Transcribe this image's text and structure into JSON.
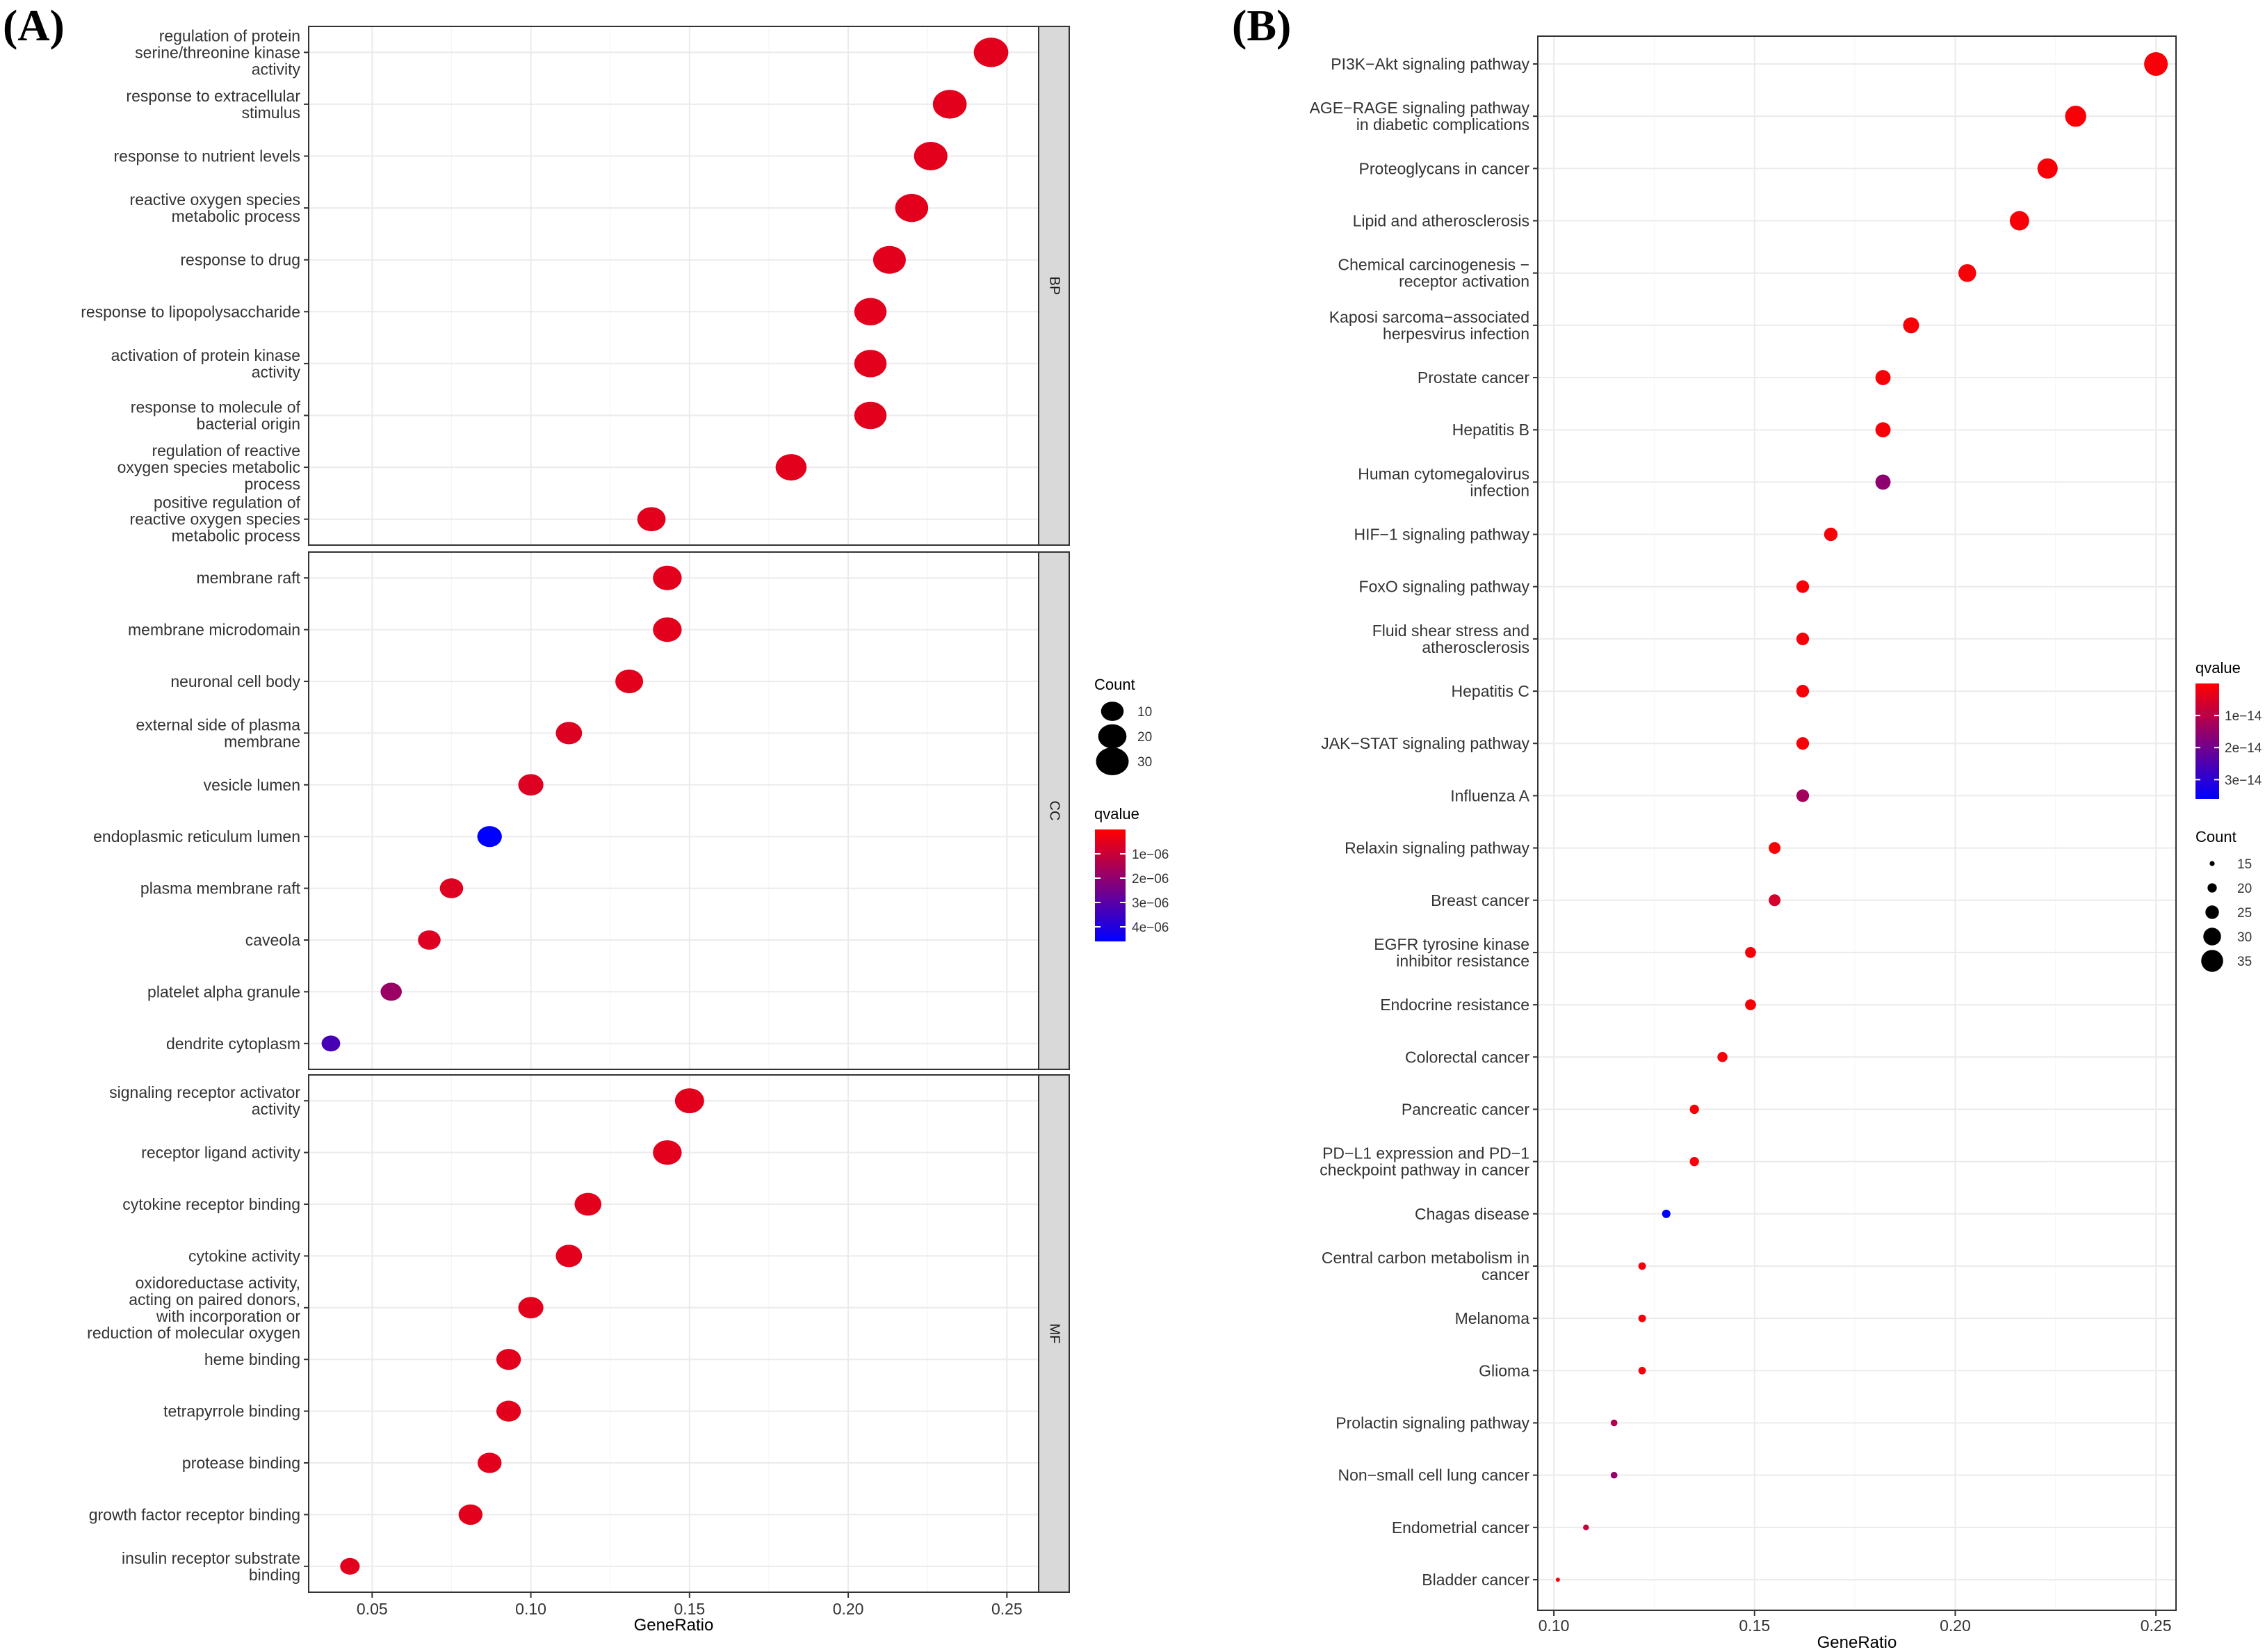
{
  "panel_labels": [
    "(A)",
    "(B)"
  ],
  "chart_data": [
    {
      "type": "scatter",
      "panel": "(A)",
      "xlabel": "GeneRatio",
      "ylabel": "",
      "xlim": [
        0.03,
        0.26
      ],
      "xticks": [
        0.05,
        0.1,
        0.15,
        0.2,
        0.25
      ],
      "xtick_labels": [
        "0.05",
        "0.10",
        "0.15",
        "0.20",
        "0.25"
      ],
      "facets": [
        {
          "label": "BP",
          "terms": [
            {
              "name": "regulation of protein\nserine/threonine kinase\nactivity",
              "gene_ratio": 0.245,
              "count": 35,
              "qvalue": 5e-07
            },
            {
              "name": "response to extracellular\nstimulus",
              "gene_ratio": 0.232,
              "count": 33,
              "qvalue": 5e-07
            },
            {
              "name": "response to nutrient levels",
              "gene_ratio": 0.226,
              "count": 32,
              "qvalue": 5e-07
            },
            {
              "name": "reactive oxygen species\nmetabolic process",
              "gene_ratio": 0.22,
              "count": 31,
              "qvalue": 5e-07
            },
            {
              "name": "response to drug",
              "gene_ratio": 0.213,
              "count": 30,
              "qvalue": 5e-07
            },
            {
              "name": "response to lipopolysaccharide",
              "gene_ratio": 0.207,
              "count": 29,
              "qvalue": 5e-07
            },
            {
              "name": "activation of protein kinase\nactivity",
              "gene_ratio": 0.207,
              "count": 29,
              "qvalue": 5e-07
            },
            {
              "name": "response to molecule of\nbacterial origin",
              "gene_ratio": 0.207,
              "count": 29,
              "qvalue": 5e-07
            },
            {
              "name": "regulation of reactive\noxygen species metabolic\nprocess",
              "gene_ratio": 0.182,
              "count": 26,
              "qvalue": 5e-07
            },
            {
              "name": "positive regulation of\nreactive oxygen species\nmetabolic process",
              "gene_ratio": 0.138,
              "count": 20,
              "qvalue": 5e-07
            }
          ]
        },
        {
          "label": "CC",
          "terms": [
            {
              "name": "membrane raft",
              "gene_ratio": 0.143,
              "count": 21,
              "qvalue": 5e-07
            },
            {
              "name": "membrane microdomain",
              "gene_ratio": 0.143,
              "count": 21,
              "qvalue": 5e-07
            },
            {
              "name": "neuronal cell body",
              "gene_ratio": 0.131,
              "count": 19,
              "qvalue": 5e-07
            },
            {
              "name": "external side of plasma\nmembrane",
              "gene_ratio": 0.112,
              "count": 16,
              "qvalue": 6e-07
            },
            {
              "name": "vesicle lumen",
              "gene_ratio": 0.1,
              "count": 14,
              "qvalue": 6e-07
            },
            {
              "name": "endoplasmic reticulum lumen",
              "gene_ratio": 0.087,
              "count": 13,
              "qvalue": 4.6e-06
            },
            {
              "name": "plasma membrane raft",
              "gene_ratio": 0.075,
              "count": 11,
              "qvalue": 6e-07
            },
            {
              "name": "caveola",
              "gene_ratio": 0.068,
              "count": 10,
              "qvalue": 6e-07
            },
            {
              "name": "platelet alpha granule",
              "gene_ratio": 0.056,
              "count": 8,
              "qvalue": 1.8e-06
            },
            {
              "name": "dendrite cytoplasm",
              "gene_ratio": 0.037,
              "count": 5,
              "qvalue": 3.3e-06
            }
          ]
        },
        {
          "label": "MF",
          "terms": [
            {
              "name": "signaling receptor activator\nactivity",
              "gene_ratio": 0.15,
              "count": 22,
              "qvalue": 5e-07
            },
            {
              "name": "receptor ligand activity",
              "gene_ratio": 0.143,
              "count": 21,
              "qvalue": 5e-07
            },
            {
              "name": "cytokine receptor binding",
              "gene_ratio": 0.118,
              "count": 17,
              "qvalue": 5e-07
            },
            {
              "name": "cytokine activity",
              "gene_ratio": 0.112,
              "count": 16,
              "qvalue": 5e-07
            },
            {
              "name": "oxidoreductase activity,\nacting on paired donors,\nwith incorporation or\nreduction of molecular oxygen",
              "gene_ratio": 0.1,
              "count": 14,
              "qvalue": 5e-07
            },
            {
              "name": "heme binding",
              "gene_ratio": 0.093,
              "count": 13,
              "qvalue": 5e-07
            },
            {
              "name": "tetrapyrrole binding",
              "gene_ratio": 0.093,
              "count": 13,
              "qvalue": 5e-07
            },
            {
              "name": "protease binding",
              "gene_ratio": 0.087,
              "count": 12,
              "qvalue": 5e-07
            },
            {
              "name": "growth factor receptor binding",
              "gene_ratio": 0.081,
              "count": 12,
              "qvalue": 5e-07
            },
            {
              "name": "insulin receptor substrate\nbinding",
              "gene_ratio": 0.043,
              "count": 6,
              "qvalue": 5e-07
            }
          ]
        }
      ],
      "legend_count": {
        "title": "Count",
        "values": [
          10,
          20,
          30
        ],
        "labels": [
          "10",
          "20",
          "30"
        ]
      },
      "legend_qvalue": {
        "title": "qvalue",
        "min": 0,
        "max": 4.6e-06,
        "ticks": [
          1e-06,
          2e-06,
          3e-06,
          4e-06
        ],
        "labels": [
          "1e−06",
          "2e−06",
          "3e−06",
          "4e−06"
        ]
      }
    },
    {
      "type": "scatter",
      "panel": "(B)",
      "xlabel": "GeneRatio",
      "ylabel": "",
      "xlim": [
        0.096,
        0.255
      ],
      "xticks": [
        0.1,
        0.15,
        0.2,
        0.25
      ],
      "xtick_labels": [
        "0.10",
        "0.15",
        "0.20",
        "0.25"
      ],
      "terms": [
        {
          "name": "PI3K−Akt signaling pathway",
          "gene_ratio": 0.25,
          "count": 37,
          "qvalue": 1e-15
        },
        {
          "name": "AGE−RAGE signaling pathway\nin diabetic complications",
          "gene_ratio": 0.23,
          "count": 34,
          "qvalue": 1e-15
        },
        {
          "name": "Proteoglycans in cancer",
          "gene_ratio": 0.223,
          "count": 33,
          "qvalue": 1e-15
        },
        {
          "name": "Lipid and atherosclerosis",
          "gene_ratio": 0.216,
          "count": 32,
          "qvalue": 1e-15
        },
        {
          "name": "Chemical carcinogenesis −\nreceptor activation",
          "gene_ratio": 0.203,
          "count": 30,
          "qvalue": 1e-15
        },
        {
          "name": "Kaposi sarcoma−associated\nherpesvirus infection",
          "gene_ratio": 0.189,
          "count": 28,
          "qvalue": 1e-15
        },
        {
          "name": "Prostate cancer",
          "gene_ratio": 0.182,
          "count": 27,
          "qvalue": 1e-15
        },
        {
          "name": "Hepatitis B",
          "gene_ratio": 0.182,
          "count": 27,
          "qvalue": 1e-15
        },
        {
          "name": "Human cytomegalovirus\ninfection",
          "gene_ratio": 0.182,
          "count": 27,
          "qvalue": 1.6e-14
        },
        {
          "name": "HIF−1 signaling pathway",
          "gene_ratio": 0.169,
          "count": 25,
          "qvalue": 1e-15
        },
        {
          "name": "FoxO signaling pathway",
          "gene_ratio": 0.162,
          "count": 24,
          "qvalue": 1e-15
        },
        {
          "name": "Fluid shear stress and\natherosclerosis",
          "gene_ratio": 0.162,
          "count": 24,
          "qvalue": 1e-15
        },
        {
          "name": "Hepatitis C",
          "gene_ratio": 0.162,
          "count": 24,
          "qvalue": 1e-15
        },
        {
          "name": "JAK−STAT signaling pathway",
          "gene_ratio": 0.162,
          "count": 24,
          "qvalue": 1e-15
        },
        {
          "name": "Influenza A",
          "gene_ratio": 0.162,
          "count": 24,
          "qvalue": 1.3e-14
        },
        {
          "name": "Relaxin signaling pathway",
          "gene_ratio": 0.155,
          "count": 23,
          "qvalue": 1e-15
        },
        {
          "name": "Breast cancer",
          "gene_ratio": 0.155,
          "count": 23,
          "qvalue": 6e-15
        },
        {
          "name": "EGFR tyrosine kinase\ninhibitor resistance",
          "gene_ratio": 0.149,
          "count": 22,
          "qvalue": 1e-15
        },
        {
          "name": "Endocrine resistance",
          "gene_ratio": 0.149,
          "count": 22,
          "qvalue": 1e-15
        },
        {
          "name": "Colorectal cancer",
          "gene_ratio": 0.142,
          "count": 21,
          "qvalue": 1e-15
        },
        {
          "name": "Pancreatic cancer",
          "gene_ratio": 0.135,
          "count": 20,
          "qvalue": 1e-15
        },
        {
          "name": "PD−L1 expression and PD−1\ncheckpoint pathway in cancer",
          "gene_ratio": 0.135,
          "count": 20,
          "qvalue": 1e-15
        },
        {
          "name": "Chagas disease",
          "gene_ratio": 0.128,
          "count": 19,
          "qvalue": 3.6e-14
        },
        {
          "name": "Central carbon metabolism in\ncancer",
          "gene_ratio": 0.122,
          "count": 18,
          "qvalue": 1e-15
        },
        {
          "name": "Melanoma",
          "gene_ratio": 0.122,
          "count": 18,
          "qvalue": 1e-15
        },
        {
          "name": "Glioma",
          "gene_ratio": 0.122,
          "count": 18,
          "qvalue": 1e-15
        },
        {
          "name": "Prolactin signaling pathway",
          "gene_ratio": 0.115,
          "count": 17,
          "qvalue": 1.1e-14
        },
        {
          "name": "Non−small cell lung cancer",
          "gene_ratio": 0.115,
          "count": 17,
          "qvalue": 1.5e-14
        },
        {
          "name": "Endometrial cancer",
          "gene_ratio": 0.108,
          "count": 16,
          "qvalue": 8e-15
        },
        {
          "name": "Bladder cancer",
          "gene_ratio": 0.101,
          "count": 14,
          "qvalue": 1e-15
        }
      ],
      "legend_qvalue": {
        "title": "qvalue",
        "min": 0,
        "max": 3.6e-14,
        "ticks": [
          1e-14,
          2e-14,
          3e-14
        ],
        "labels": [
          "1e−14",
          "2e−14",
          "3e−14"
        ]
      },
      "legend_count": {
        "title": "Count",
        "values": [
          15,
          20,
          25,
          30,
          35
        ],
        "labels": [
          "15",
          "20",
          "25",
          "30",
          "35"
        ]
      }
    }
  ],
  "colors": {
    "low_q": "#ff0000",
    "high_q": "#0000ff",
    "panel_bg": "#ffffff",
    "grid": "#ebebeb",
    "strip_bg": "#d9d9d9",
    "border": "#333333"
  }
}
